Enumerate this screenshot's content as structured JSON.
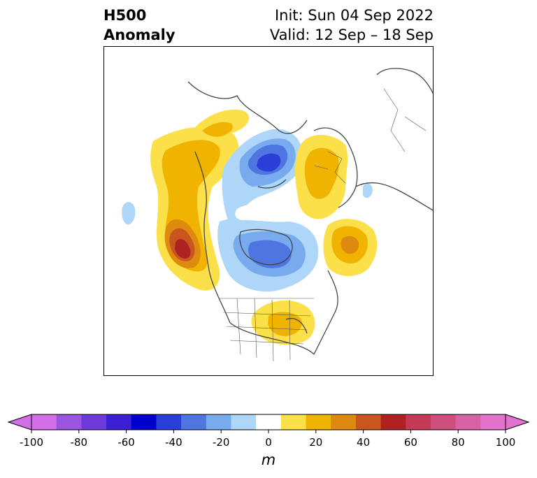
{
  "header": {
    "title_line1": "H500",
    "title_line2": "Anomaly",
    "init_label": "Init: Sun 04 Sep 2022",
    "valid_label": "Valid: 12 Sep – 18 Sep"
  },
  "colorbar": {
    "ticks": [
      "-100",
      "-80",
      "-60",
      "-40",
      "-20",
      "0",
      "20",
      "40",
      "60",
      "80",
      "100"
    ],
    "unit": "m",
    "levels": [
      -100,
      -90,
      -80,
      -70,
      -60,
      -50,
      -40,
      -30,
      -20,
      -10,
      10,
      20,
      30,
      40,
      50,
      60,
      70,
      80,
      90,
      100
    ],
    "colors": [
      "#d36fe6",
      "#9b55e0",
      "#6e3ad8",
      "#3a1fd4",
      "#0000cc",
      "#2a3fd8",
      "#4f76e0",
      "#78aaee",
      "#aed6f8",
      "#ffffff",
      "#fce04a",
      "#f0b400",
      "#de8a10",
      "#c8561e",
      "#b02222",
      "#c23a54",
      "#cf4e7e",
      "#d862a6",
      "#e272cc"
    ],
    "extend_min_color": "#d36fe6",
    "extend_max_color": "#e272cc"
  },
  "map": {
    "projection": "polar-stereographic",
    "variable": "500 hPa geopotential height anomaly"
  }
}
